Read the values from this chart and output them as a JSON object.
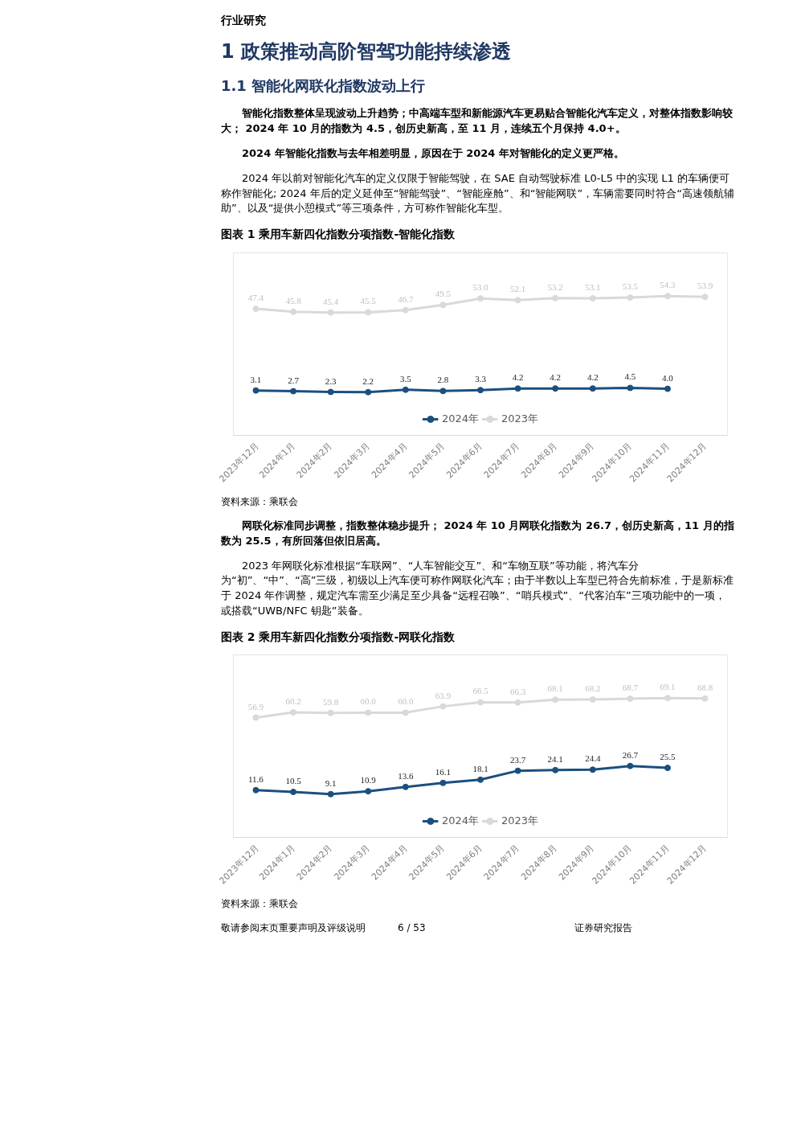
{
  "chart_data": [
    {
      "type": "line",
      "title": "图表 1 乘用车新四化指数分项指数-智能化指数",
      "categories": [
        "2023年12月",
        "2024年1月",
        "2024年2月",
        "2024年3月",
        "2024年4月",
        "2024年5月",
        "2024年6月",
        "2024年7月",
        "2024年8月",
        "2024年9月",
        "2024年10月",
        "2024年11月",
        "2024年12月"
      ],
      "series": [
        {
          "name": "2024年",
          "color": "#1b4f7f",
          "values": [
            3.1,
            2.7,
            2.3,
            2.2,
            3.5,
            2.8,
            3.3,
            4.2,
            4.2,
            4.2,
            4.5,
            4.0,
            null
          ],
          "value_labels": [
            "3.1",
            "2.7",
            "2.3",
            "2.2",
            "3.5",
            "2.8",
            "3.3",
            "4.2",
            "4.2",
            "4.2",
            "4.5",
            "4.0",
            null
          ]
        },
        {
          "name": "2023年",
          "color": "#d9d9d9",
          "values": [
            47.4,
            45.8,
            45.4,
            45.5,
            46.7,
            49.5,
            53.0,
            52.1,
            53.2,
            53.1,
            53.5,
            54.3,
            53.9
          ],
          "value_labels": [
            "47.4",
            "45.8",
            "45.4",
            "45.5",
            "46.7",
            "49.5",
            "53.0",
            "52.1",
            "53.2",
            "53.1",
            "53.5",
            "54.3",
            "53.9"
          ]
        }
      ],
      "marker": "circle",
      "legend": "bottom",
      "grid": false,
      "annotations": [
        "行业研究",
        "1 政策推动高阶智驾功能持续渗透",
        "1.1 智能化网联化指数波动上行",
        "智能化指数整体呈现波动上升趋势；中高端车型和新能源汽车更易贴合智能化汽车定义，对整体指数影响较大； 2024 年 10 月的指数为 4.5，创历史新高，至 11 月，连续五个月保持 4.0+。",
        "2024 年智能化指数与去年相差明显，原因在于 2024 年对智能化的定义更严格。",
        "2024 年以前对智能化汽车的定义仅限于智能驾驶，在 SAE 自动驾驶标准 L0-L5 中的实现 L1 的车辆便可称作智能化; 2024 年后的定义延伸至“智能驾驶”、“智能座舱”、和“智能网联”，车辆需要同时符合“高速领航辅助”、以及“提供小憩模式”等三项条件，方可称作智能化车型。",
        "资料来源：乘联会"
      ]
    },
    {
      "type": "line",
      "title": "图表 2 乘用车新四化指数分项指数-网联化指数",
      "categories": [
        "2023年12月",
        "2024年1月",
        "2024年2月",
        "2024年3月",
        "2024年4月",
        "2024年5月",
        "2024年6月",
        "2024年7月",
        "2024年8月",
        "2024年9月",
        "2024年10月",
        "2024年11月",
        "2024年12月"
      ],
      "series": [
        {
          "name": "2024年",
          "color": "#1b4f7f",
          "values": [
            11.6,
            10.5,
            9.1,
            10.9,
            13.6,
            16.1,
            18.1,
            23.7,
            24.1,
            24.4,
            26.7,
            25.5,
            null
          ],
          "value_labels": [
            "11.6",
            "10.5",
            "9.1",
            "10.9",
            "13.6",
            "16.1",
            "18.1",
            "23.7",
            "24.1",
            "24.4",
            "26.7",
            "25.5",
            null
          ]
        },
        {
          "name": "2023年",
          "color": "#d9d9d9",
          "values": [
            56.9,
            60.2,
            59.8,
            60.0,
            60.0,
            63.9,
            66.5,
            66.3,
            68.1,
            68.2,
            68.7,
            69.1,
            68.8
          ],
          "value_labels": [
            "56.9",
            "60.2",
            "59.8",
            "60.0",
            "60.0",
            "63.9",
            "66.5",
            "66.3",
            "68.1",
            "68.2",
            "68.7",
            "69.1",
            "68.8"
          ]
        }
      ],
      "marker": "circle",
      "legend": "bottom",
      "grid": false,
      "annotations": [
        "网联化标准同步调整，指数整体稳步提升；  2024 年 10 月网联化指数为 26.7，创历史新高，11 月的指数为 25.5，有所回落但依旧居高。",
        "2023 年网联化标准根据“车联网”、“人车智能交互”、和“车物互联”等功能，将汽车分为“初”、“中”、“高”三级，初级以上汽车便可称作网联化汽车；由于半数以上车型已符合先前标准，于是新标准于 2024 年作调整，规定汽车需至少满足至少具备“远程召唤”、“哨兵模式”、“代客泊车”三项功能中的一项，或搭载“UWB/NFC 钥匙”装备。",
        "资料来源：乘联会",
        "敬请参阅末页重要声明及评级说明",
        "6 / 53",
        "证券研究报告"
      ]
    }
  ]
}
